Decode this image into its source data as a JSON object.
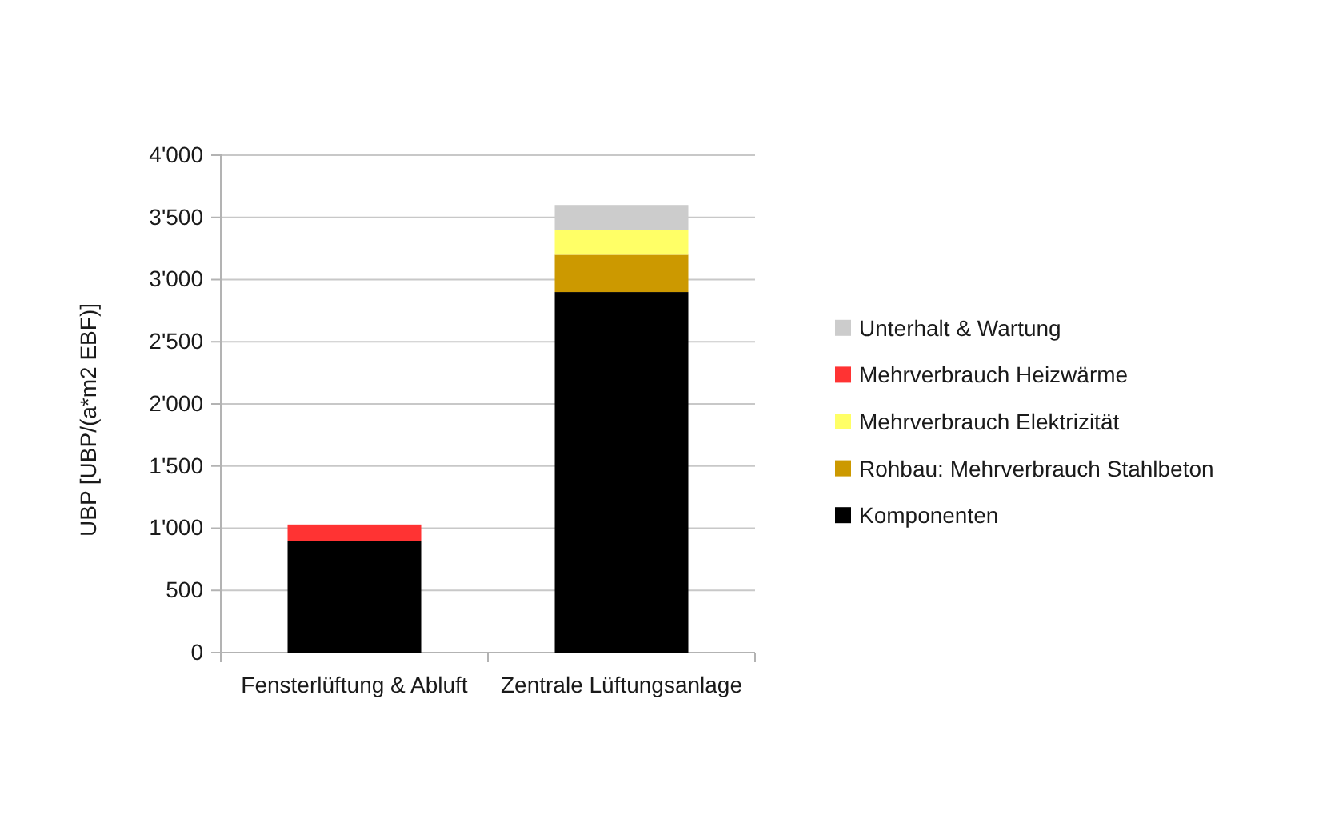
{
  "chart_data": {
    "type": "bar",
    "stacked": true,
    "categories": [
      "Fensterlüftung & Abluft",
      "Zentrale Lüftungsanlage"
    ],
    "ylabel": "UBP [UBP/(a*m2 EBF)]",
    "ylim": [
      0,
      4000
    ],
    "yticks": [
      0,
      500,
      {
        "value": 1000,
        "label": "1'000"
      },
      {
        "value": 1500,
        "label": "1'500"
      },
      {
        "value": 2000,
        "label": "2'000"
      },
      {
        "value": 2500,
        "label": "2'500"
      },
      {
        "value": 3000,
        "label": "3'000"
      },
      {
        "value": 3500,
        "label": "3'500"
      },
      {
        "value": 4000,
        "label": "4'000"
      }
    ],
    "grid": "y",
    "legend": "right",
    "series": [
      {
        "name": "Komponenten",
        "color": "#000000",
        "values": [
          900,
          2900
        ]
      },
      {
        "name": "Rohbau: Mehrverbrauch Stahlbeton",
        "color": "#cc9900",
        "values": [
          null,
          300
        ]
      },
      {
        "name": "Mehrverbrauch Elektrizität",
        "color": "#ffff66",
        "values": [
          null,
          200
        ]
      },
      {
        "name": "Mehrverbrauch Heizwärme",
        "color": "#ff3333",
        "values": [
          130,
          null
        ]
      },
      {
        "name": "Unterhalt & Wartung",
        "color": "#cccccc",
        "values": [
          null,
          200
        ]
      }
    ]
  }
}
